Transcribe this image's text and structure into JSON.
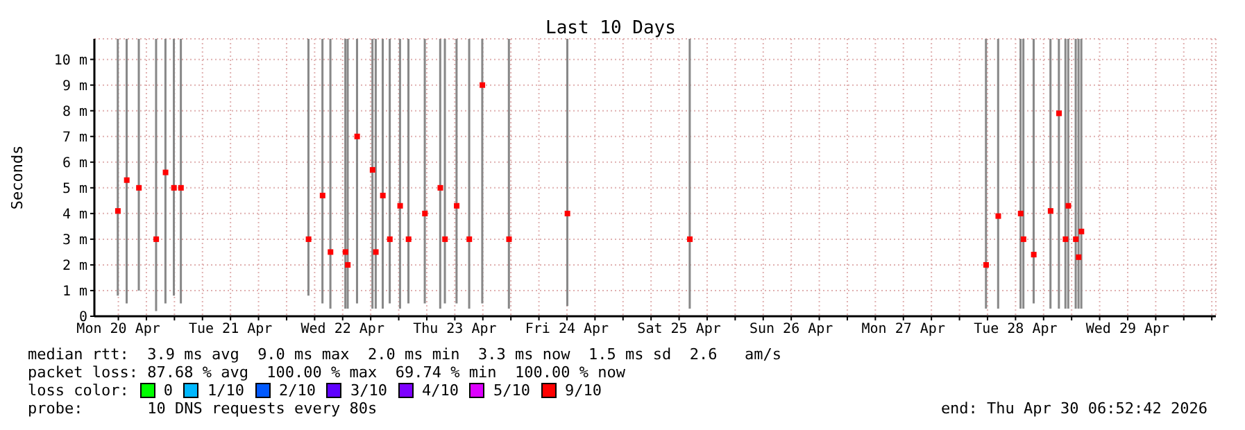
{
  "chart_data": {
    "type": "scatter",
    "title": "Last 10 Days",
    "ylabel": "Seconds",
    "legend": "bottom",
    "legend_title": "loss color:",
    "grid": true,
    "marker": "square",
    "xlim": [
      "2026-04-20T06:52",
      "2026-04-30T06:52"
    ],
    "xticks": [
      {
        "value": "2026-04-20T12:00",
        "label": "Mon 20 Apr"
      },
      {
        "value": "2026-04-20T18:00",
        "label": null
      },
      {
        "value": "2026-04-21T00:00",
        "label": null
      },
      {
        "value": "2026-04-21T06:00",
        "label": null
      },
      {
        "value": "2026-04-21T12:00",
        "label": "Tue 21 Apr"
      },
      {
        "value": "2026-04-21T18:00",
        "label": null
      },
      {
        "value": "2026-04-22T00:00",
        "label": null
      },
      {
        "value": "2026-04-22T06:00",
        "label": null
      },
      {
        "value": "2026-04-22T12:00",
        "label": "Wed 22 Apr"
      },
      {
        "value": "2026-04-22T18:00",
        "label": null
      },
      {
        "value": "2026-04-23T00:00",
        "label": null
      },
      {
        "value": "2026-04-23T06:00",
        "label": null
      },
      {
        "value": "2026-04-23T12:00",
        "label": "Thu 23 Apr"
      },
      {
        "value": "2026-04-23T18:00",
        "label": null
      },
      {
        "value": "2026-04-24T00:00",
        "label": null
      },
      {
        "value": "2026-04-24T06:00",
        "label": null
      },
      {
        "value": "2026-04-24T12:00",
        "label": "Fri 24 Apr"
      },
      {
        "value": "2026-04-24T18:00",
        "label": null
      },
      {
        "value": "2026-04-25T00:00",
        "label": null
      },
      {
        "value": "2026-04-25T06:00",
        "label": null
      },
      {
        "value": "2026-04-25T12:00",
        "label": "Sat 25 Apr"
      },
      {
        "value": "2026-04-25T18:00",
        "label": null
      },
      {
        "value": "2026-04-26T00:00",
        "label": null
      },
      {
        "value": "2026-04-26T06:00",
        "label": null
      },
      {
        "value": "2026-04-26T12:00",
        "label": "Sun 26 Apr"
      },
      {
        "value": "2026-04-26T18:00",
        "label": null
      },
      {
        "value": "2026-04-27T00:00",
        "label": null
      },
      {
        "value": "2026-04-27T06:00",
        "label": null
      },
      {
        "value": "2026-04-27T12:00",
        "label": "Mon 27 Apr"
      },
      {
        "value": "2026-04-27T18:00",
        "label": null
      },
      {
        "value": "2026-04-28T00:00",
        "label": null
      },
      {
        "value": "2026-04-28T06:00",
        "label": null
      },
      {
        "value": "2026-04-28T12:00",
        "label": "Tue 28 Apr"
      },
      {
        "value": "2026-04-28T18:00",
        "label": null
      },
      {
        "value": "2026-04-29T00:00",
        "label": null
      },
      {
        "value": "2026-04-29T06:00",
        "label": null
      },
      {
        "value": "2026-04-29T12:00",
        "label": "Wed 29 Apr"
      },
      {
        "value": "2026-04-29T18:00",
        "label": null
      },
      {
        "value": "2026-04-30T00:00",
        "label": null
      },
      {
        "value": "2026-04-30T06:00",
        "label": null
      }
    ],
    "ylim": [
      0,
      10.8
    ],
    "yticks": [
      0,
      {
        "value": 1,
        "label": "1 m"
      },
      {
        "value": 2,
        "label": "2 m"
      },
      {
        "value": 3,
        "label": "3 m"
      },
      {
        "value": 4,
        "label": "4 m"
      },
      {
        "value": 5,
        "label": "5 m"
      },
      {
        "value": 6,
        "label": "6 m"
      },
      {
        "value": 7,
        "label": "7 m"
      },
      {
        "value": 8,
        "label": "8 m"
      },
      {
        "value": 9,
        "label": "9 m"
      },
      {
        "value": 10,
        "label": "10 m"
      }
    ],
    "series": [
      {
        "type": "bar",
        "color": "#888888",
        "x": [
          "2026-04-20T11:54",
          "2026-04-20T13:48",
          "2026-04-20T16:24",
          "2026-04-20T20:06",
          "2026-04-20T22:06",
          "2026-04-20T23:54",
          "2026-04-21T01:24",
          "2026-04-22T04:42",
          "2026-04-22T07:42",
          "2026-04-22T09:24",
          "2026-04-22T12:36",
          "2026-04-22T13:06",
          "2026-04-22T15:06",
          "2026-04-22T18:24",
          "2026-04-22T19:06",
          "2026-04-22T20:36",
          "2026-04-22T22:06",
          "2026-04-23T00:18",
          "2026-04-23T02:06",
          "2026-04-23T05:36",
          "2026-04-23T08:54",
          "2026-04-23T09:54",
          "2026-04-23T12:24",
          "2026-04-23T15:06",
          "2026-04-23T17:54",
          "2026-04-23T23:36",
          "2026-04-24T12:06",
          "2026-04-25T14:18",
          "2026-04-28T05:42",
          "2026-04-28T08:18",
          "2026-04-28T13:06",
          "2026-04-28T13:42",
          "2026-04-28T15:54",
          "2026-04-28T19:30",
          "2026-04-28T21:18",
          "2026-04-28T22:42",
          "2026-04-28T23:18",
          "2026-04-29T00:54",
          "2026-04-29T01:30",
          "2026-04-29T02:06"
        ],
        "base": [
          0.8,
          0.5,
          1,
          0.2,
          0.5,
          0.8,
          0.5,
          0.8,
          0.5,
          0.3,
          0.3,
          0.3,
          0.5,
          0.3,
          0.3,
          0.3,
          0.5,
          0.3,
          0.5,
          0.5,
          0.3,
          0.5,
          0.5,
          0.3,
          0.5,
          0.3,
          0.4,
          0.3,
          0.3,
          0.3,
          0.3,
          0.3,
          0.5,
          0.3,
          0.3,
          0.3,
          0.3,
          0.3,
          0.3,
          0.3
        ],
        "values": [
          10,
          10.3,
          9.8,
          10.6,
          10.3,
          10,
          10.3,
          10,
          10.3,
          10.5,
          10.5,
          10.5,
          10.3,
          10.5,
          10.5,
          10.5,
          10.3,
          10.5,
          10.3,
          10.3,
          10.5,
          10.3,
          10.3,
          10.5,
          10.3,
          10.5,
          10.4,
          10.5,
          10.5,
          10.5,
          10.5,
          10.5,
          10.3,
          10.5,
          10.5,
          10.5,
          10.5,
          10.5,
          10.5,
          10.5
        ]
      },
      {
        "name": "0",
        "color": "#00ff00"
      },
      {
        "name": "1/10",
        "color": "#00b8ff"
      },
      {
        "name": "2/10",
        "color": "#0059ff"
      },
      {
        "name": "3/10",
        "color": "#5e00ff"
      },
      {
        "name": "4/10",
        "color": "#7e00ff"
      },
      {
        "name": "5/10",
        "color": "#dd00ff"
      },
      {
        "name": "9/10",
        "color": "#ff0000",
        "x": [
          "2026-04-20T11:54",
          "2026-04-20T13:48",
          "2026-04-20T16:24",
          "2026-04-20T20:06",
          "2026-04-20T22:06",
          "2026-04-20T23:54",
          "2026-04-21T01:24",
          "2026-04-22T04:42",
          "2026-04-22T07:42",
          "2026-04-22T09:24",
          "2026-04-22T12:36",
          "2026-04-22T13:06",
          "2026-04-22T15:06",
          "2026-04-22T18:24",
          "2026-04-22T19:06",
          "2026-04-22T20:36",
          "2026-04-22T22:06",
          "2026-04-23T00:18",
          "2026-04-23T02:06",
          "2026-04-23T05:36",
          "2026-04-23T08:54",
          "2026-04-23T09:54",
          "2026-04-23T12:24",
          "2026-04-23T15:06",
          "2026-04-23T17:54",
          "2026-04-23T23:36",
          "2026-04-24T12:06",
          "2026-04-25T14:18",
          "2026-04-28T05:42",
          "2026-04-28T08:18",
          "2026-04-28T13:06",
          "2026-04-28T13:42",
          "2026-04-28T15:54",
          "2026-04-28T19:30",
          "2026-04-28T21:18",
          "2026-04-28T22:42",
          "2026-04-28T23:18",
          "2026-04-29T00:54",
          "2026-04-29T01:30",
          "2026-04-29T02:06"
        ],
        "values": [
          4.1,
          5.3,
          5,
          3,
          5.6,
          5,
          5,
          3,
          4.7,
          2.5,
          2.5,
          2,
          7,
          5.7,
          2.5,
          4.7,
          3,
          4.3,
          3,
          4,
          5,
          3,
          4.3,
          3,
          9,
          3,
          4,
          3,
          2,
          3.9,
          4,
          3,
          2.4,
          4.1,
          7.9,
          3,
          4.3,
          3,
          2.3,
          3.3
        ]
      }
    ],
    "annotations": [
      "median rtt:  3.9 ms avg  9.0 ms max  2.0 ms min  3.3 ms now  1.5 ms sd  2.6   am/s",
      "packet loss: 87.68 % avg  100.00 % max  69.74 % min  100.00 % now",
      "probe:       10 DNS requests every 80s",
      "end: Thu Apr 30 06:52:42 2026"
    ]
  }
}
